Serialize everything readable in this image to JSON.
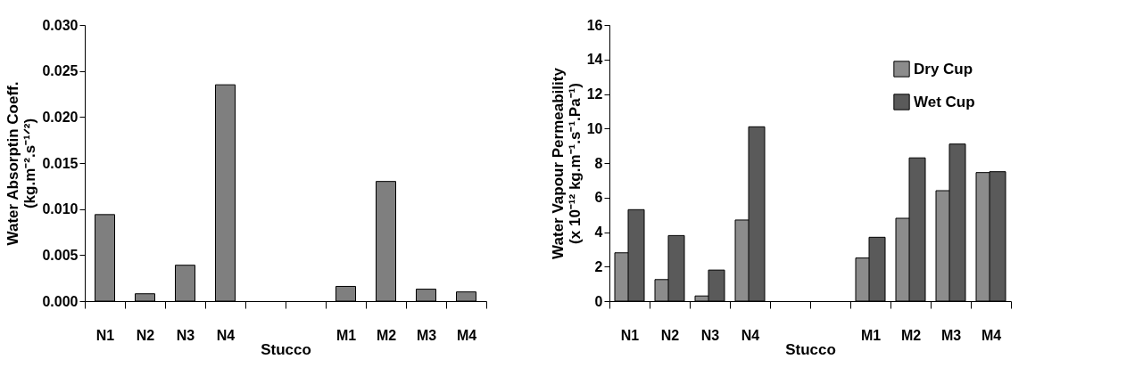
{
  "chart_data": [
    {
      "type": "bar",
      "categories": [
        "N1",
        "N2",
        "N3",
        "N4",
        null,
        null,
        "M1",
        "M2",
        "M3",
        "M4"
      ],
      "xlabel": "Stucco",
      "ylabel": "Water Absorptin Coeff.\n(kg.m⁻².s⁻¹ᐟ²)",
      "series": [
        {
          "color": "#7f7f7f",
          "values": [
            0.0094,
            0.0008,
            0.0039,
            0.0235,
            null,
            null,
            0.0016,
            0.013,
            0.0013,
            0.001
          ]
        }
      ],
      "ylim": [
        0,
        0.03
      ],
      "yticks": [
        {
          "value": 0,
          "label": "0.000"
        },
        {
          "value": 0.005,
          "label": "0.005"
        },
        {
          "value": 0.01,
          "label": "0.010"
        },
        {
          "value": 0.015,
          "label": "0.015"
        },
        {
          "value": 0.02,
          "label": "0.020"
        },
        {
          "value": 0.025,
          "label": "0.025"
        },
        {
          "value": 0.03,
          "label": "0.030"
        }
      ],
      "grid": false
    },
    {
      "type": "bar",
      "categories": [
        "N1",
        "N2",
        "N3",
        "N4",
        null,
        null,
        "M1",
        "M2",
        "M3",
        "M4"
      ],
      "xlabel": "Stucco",
      "ylabel": "Water Vapour Permeability\n(x 10⁻¹²  kg.m⁻¹.s⁻¹.Pa⁻¹)",
      "series": [
        {
          "name": "Dry Cup",
          "color": "#8c8c8c",
          "values": [
            2.8,
            1.25,
            0.3,
            4.7,
            null,
            null,
            2.5,
            4.8,
            6.4,
            7.45
          ]
        },
        {
          "name": "Wet Cup",
          "color": "#5a5a5a",
          "values": [
            5.3,
            3.8,
            1.8,
            10.1,
            null,
            null,
            3.7,
            8.3,
            9.1,
            7.5
          ]
        }
      ],
      "ylim": [
        0,
        16
      ],
      "yticks": [
        0,
        2,
        4,
        6,
        8,
        10,
        12,
        14,
        16
      ],
      "grid": false,
      "legend": "top right"
    }
  ]
}
